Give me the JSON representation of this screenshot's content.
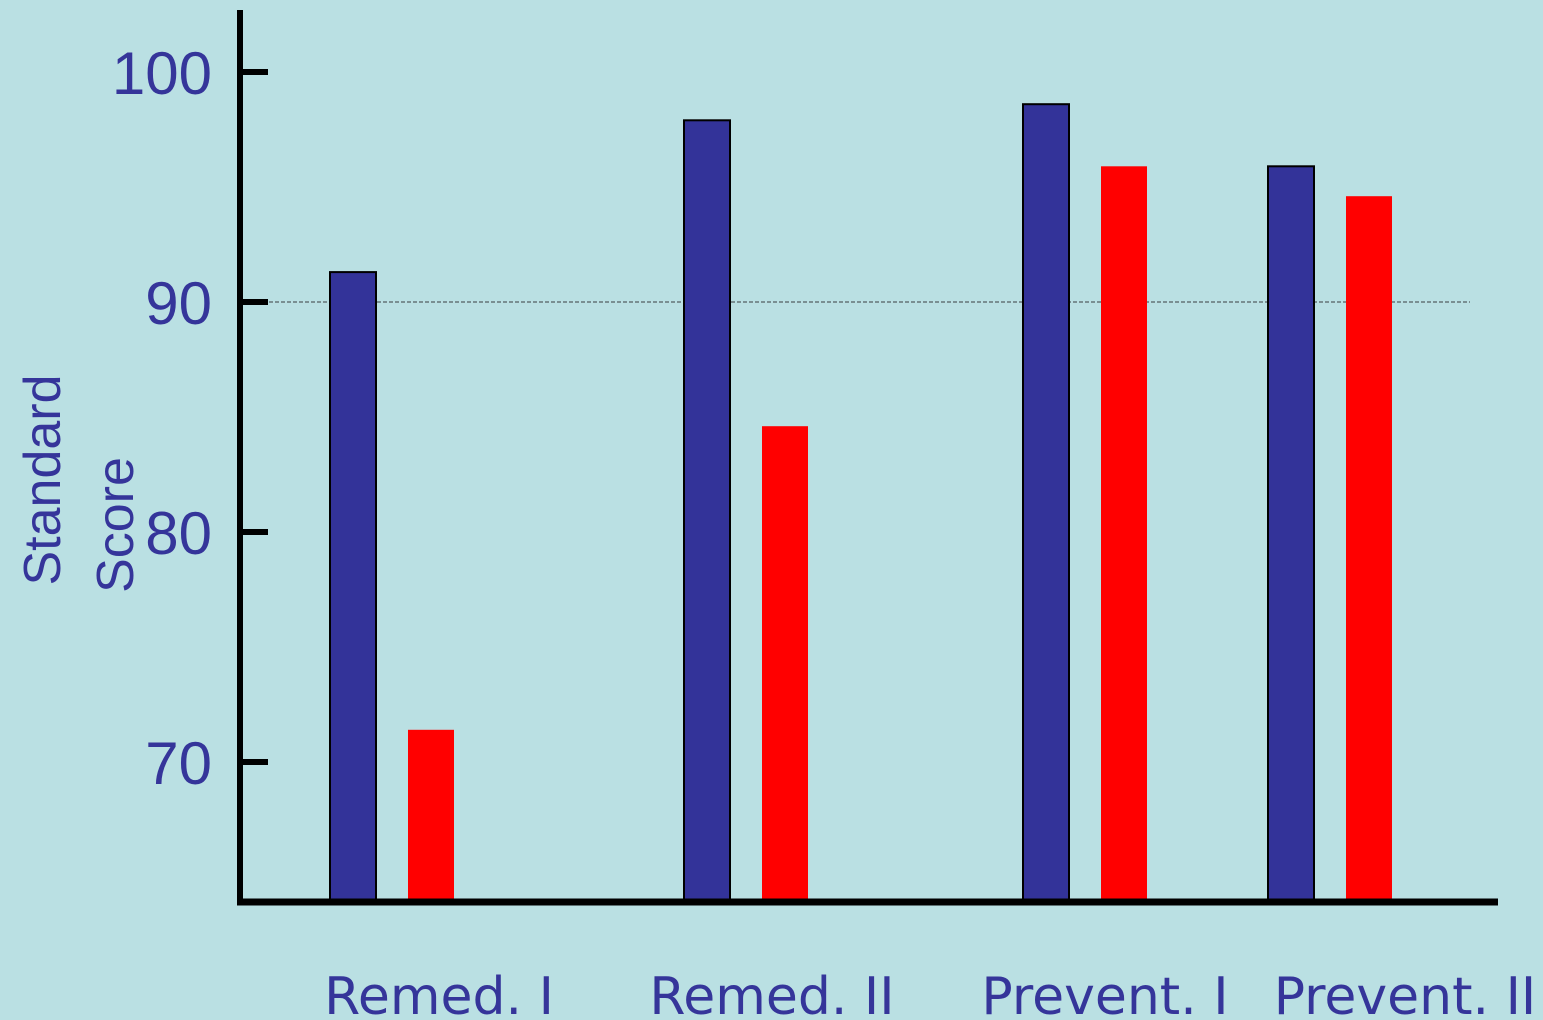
{
  "chart_data": {
    "type": "bar",
    "categories": [
      "Remed. I",
      "Remed. II",
      "Prevent. I",
      "Prevent. II"
    ],
    "series": [
      {
        "color": "#333399",
        "values": [
          91.3,
          97.9,
          98.6,
          95.9
        ]
      },
      {
        "color": "#ff0000",
        "values": [
          71.4,
          84.6,
          95.9,
          94.6
        ]
      }
    ],
    "ylabel": [
      "Standard",
      "Score"
    ],
    "yticks": [
      70,
      80,
      90,
      100
    ],
    "ylim": [
      64,
      101.5
    ],
    "reference_line": 90,
    "grid": false,
    "legend": "none"
  },
  "colors": {
    "background": "#bae0e3",
    "text": "#35359a",
    "axis": "#000000",
    "reference_line": "#7a8f92"
  }
}
